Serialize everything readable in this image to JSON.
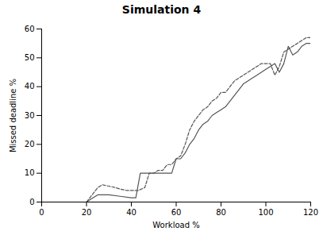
{
  "chart_data": {
    "type": "line",
    "title": "Simulation 4",
    "xlabel": "Workload %",
    "ylabel": "Missed deadline %",
    "xlim": [
      0,
      120
    ],
    "ylim": [
      0,
      60
    ],
    "xticks": [
      0,
      20,
      40,
      60,
      80,
      100,
      120
    ],
    "yticks": [
      0,
      10,
      20,
      30,
      40,
      50,
      60
    ],
    "grid": false,
    "series": [
      {
        "color": "#555555",
        "line_style": "solid",
        "x": [
          20,
          22,
          25,
          28,
          30,
          35,
          40,
          42,
          44,
          46,
          48,
          50,
          52,
          54,
          56,
          58,
          60,
          62,
          64,
          66,
          68,
          70,
          72,
          74,
          76,
          78,
          80,
          82,
          84,
          86,
          88,
          90,
          92,
          94,
          96,
          98,
          100,
          102,
          104,
          106,
          108,
          110,
          112,
          114,
          116,
          118,
          120
        ],
        "values": [
          0,
          1,
          2.5,
          2.5,
          2.5,
          2.0,
          1.5,
          1.5,
          10,
          10,
          10,
          10,
          10,
          10,
          10,
          10,
          15,
          15,
          17,
          20,
          22,
          25,
          27,
          28,
          30,
          31,
          32,
          33,
          35,
          37,
          39,
          41,
          42,
          43,
          44,
          45,
          46,
          47,
          48,
          45,
          48,
          54,
          51,
          52,
          54,
          55,
          55
        ]
      },
      {
        "color": "#555555",
        "line_style": "dashed",
        "x": [
          20,
          22,
          25,
          27,
          30,
          33,
          35,
          38,
          40,
          43,
          46,
          48,
          50,
          52,
          54,
          56,
          58,
          60,
          62,
          64,
          66,
          68,
          70,
          72,
          74,
          76,
          78,
          80,
          82,
          84,
          86,
          88,
          90,
          92,
          94,
          96,
          98,
          100,
          102,
          104,
          106,
          108,
          110,
          112,
          114,
          116,
          118,
          120
        ],
        "values": [
          0,
          2,
          5,
          6,
          5.5,
          5,
          4.5,
          4,
          4,
          4,
          5,
          10,
          10,
          11,
          11,
          13,
          13,
          15,
          16,
          20,
          25,
          28,
          30,
          32,
          33,
          35,
          36,
          38,
          38,
          40,
          42,
          43,
          44,
          45,
          46,
          47,
          48,
          48,
          48,
          44,
          47,
          52,
          53,
          54,
          55,
          56,
          57,
          57
        ]
      }
    ]
  }
}
